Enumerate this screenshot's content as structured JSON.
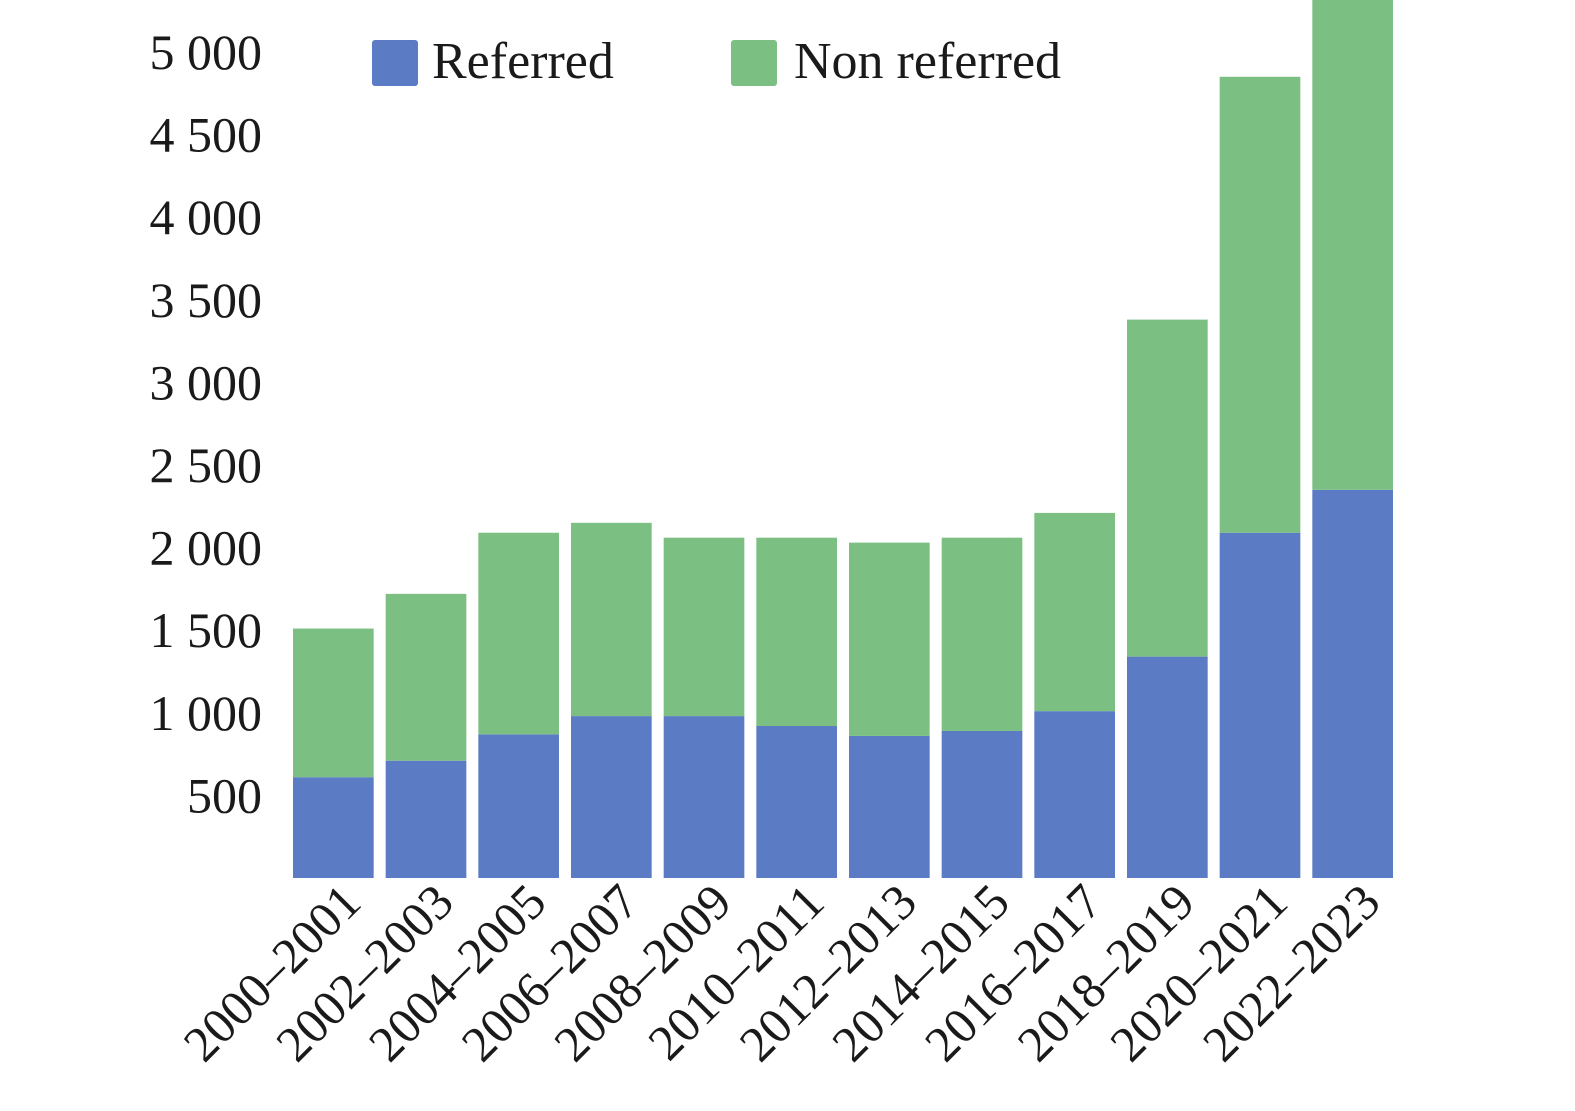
{
  "chart_data": {
    "type": "bar",
    "stacked": true,
    "categories": [
      "2000–2001",
      "2002–2003",
      "2004–2005",
      "2006–2007",
      "2008–2009",
      "2010–2011",
      "2012–2013",
      "2014–2015",
      "2016–2017",
      "2018–2019",
      "2020–2021",
      "2022–2023"
    ],
    "series": [
      {
        "name": "Referred",
        "color": "#5b7bc4",
        "values": [
          610,
          710,
          870,
          980,
          980,
          920,
          860,
          890,
          1010,
          1340,
          2090,
          2350
        ]
      },
      {
        "name": "Non referred",
        "color": "#7bbf82",
        "values": [
          900,
          1010,
          1220,
          1170,
          1080,
          1140,
          1170,
          1170,
          1200,
          2040,
          2760,
          2990
        ]
      }
    ],
    "ylim": [
      0,
      5300
    ],
    "yticks": [
      500,
      1000,
      1500,
      2000,
      2500,
      3000,
      3500,
      4000,
      4500,
      5000
    ],
    "ytick_labels": [
      "500",
      "1 000",
      "1 500",
      "2 000",
      "2 500",
      "3 000",
      "3 500",
      "4 000",
      "4 500",
      "5 000"
    ],
    "xlabel": "",
    "ylabel": "",
    "grid": false,
    "legend": "top",
    "title": ""
  }
}
